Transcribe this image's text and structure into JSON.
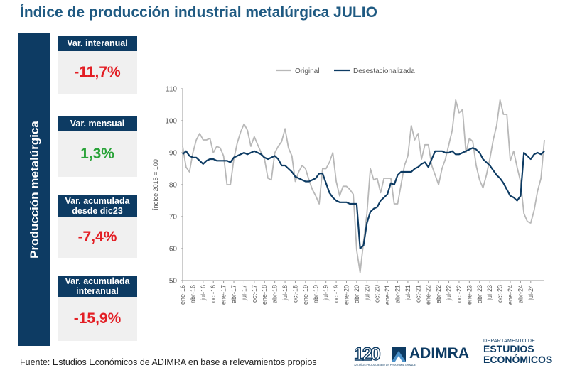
{
  "page": {
    "title": "Índice de producción industrial metalúrgica JULIO",
    "side_label": "Producción metalúrgica",
    "source": "Fuente: Estudios Económicos de ADIMRA en base a relevamientos propios"
  },
  "cards": [
    {
      "label": "Var. interanual",
      "value": "-11,7%",
      "tone": "negative"
    },
    {
      "label": "Var. mensual",
      "value": "1,3%",
      "tone": "positive"
    },
    {
      "label": "Var. acumulada desde dic23",
      "value": "-7,4%",
      "tone": "negative"
    },
    {
      "label": "Var. acumulada interanual",
      "value": "-15,9%",
      "tone": "negative"
    }
  ],
  "colors": {
    "navy": "#0d3b63",
    "title_blue": "#1f5a82",
    "negative": "#e31e24",
    "positive": "#2aa339",
    "original_series": "#b8b8b8",
    "sa_series": "#0d3b63"
  },
  "logos": {
    "anniversary": "120",
    "anniversary_sub": "120 AÑOS PRODUCIENDO UN PROGRAMA GRANDE",
    "brand": "ADIMRA",
    "dept_line1": "DEPARTAMENTO DE",
    "dept_line2": "ESTUDIOS",
    "dept_line3": "ECONÓMICOS"
  },
  "chart_data": {
    "type": "line",
    "title": "",
    "ylabel": "Índice 2015 = 100",
    "xlabel": "",
    "ylim": [
      50,
      110
    ],
    "yticks": [
      50,
      60,
      70,
      80,
      90,
      100,
      110
    ],
    "legend_position": "top",
    "x_start": "ene-16",
    "x_tick_labels": [
      "ene-16",
      "abr-16",
      "jul-16",
      "oct-16",
      "ene-17",
      "abr-17",
      "jul-17",
      "oct-17",
      "ene-18",
      "abr-18",
      "jul-18",
      "oct-18",
      "ene-19",
      "abr-19",
      "jul-19",
      "oct-19",
      "ene-20",
      "abr-20",
      "jul-20",
      "oct-20",
      "ene-21",
      "abr-21",
      "jul-21",
      "oct-21",
      "ene-22",
      "abr-22",
      "jul-22",
      "oct-22",
      "ene-23",
      "abr-23",
      "jul-23",
      "oct-23",
      "ene-24",
      "abr-24",
      "jul-24"
    ],
    "series": [
      {
        "name": "Original",
        "values": [
          92,
          85.5,
          84,
          90,
          94,
          96,
          94,
          94,
          94.5,
          90,
          92,
          91.5,
          89,
          80,
          80,
          88,
          93,
          96.5,
          99,
          97,
          92,
          95,
          92.5,
          90,
          88,
          82,
          81.5,
          90,
          92,
          93.5,
          97.5,
          91.5,
          89,
          81,
          84,
          86,
          85,
          81.5,
          78.5,
          76.5,
          74,
          85,
          85,
          87,
          90,
          81,
          76.5,
          79.5,
          79.5,
          78.5,
          77,
          59.5,
          52.5,
          62,
          71,
          85,
          81.5,
          82,
          77.5,
          82,
          82,
          82,
          74,
          74,
          80,
          86,
          89,
          98.5,
          94,
          96,
          88,
          92.5,
          92.5,
          86,
          83,
          80,
          85,
          88,
          92.5,
          97,
          106.5,
          102.5,
          103.5,
          90,
          94.5,
          93.5,
          86,
          81.5,
          79,
          83,
          88,
          94,
          98.5,
          106.5,
          102,
          102,
          87.5,
          90.5,
          85.5,
          81,
          71,
          68.5,
          68,
          72,
          78,
          82,
          94
        ]
      },
      {
        "name": "Desestacionalizada",
        "values": [
          89.5,
          90.5,
          89,
          88.5,
          88.5,
          87.5,
          86.5,
          87.5,
          88,
          88,
          87.5,
          87.5,
          87.5,
          87.5,
          87,
          88.5,
          89,
          89.5,
          90,
          89.5,
          90,
          90.5,
          90,
          89.5,
          88.5,
          88,
          88.5,
          89,
          88,
          86,
          86,
          85,
          84,
          82.5,
          82,
          81.5,
          81,
          81,
          81.5,
          82,
          83.5,
          83.5,
          80.5,
          77.5,
          76,
          75,
          74.5,
          74.5,
          74.5,
          74,
          74,
          74,
          60,
          61,
          68,
          71.5,
          72.5,
          73,
          75,
          76,
          77,
          80.5,
          80,
          83,
          84,
          84,
          84,
          84,
          85,
          85.5,
          86.5,
          87,
          85.5,
          88,
          90.5,
          90.5,
          90.5,
          90,
          90,
          90.5,
          89.5,
          89.5,
          90,
          90.5,
          91,
          91.5,
          91,
          90,
          88,
          87,
          86,
          84.5,
          83,
          82,
          80.5,
          78.5,
          76.5,
          76,
          75,
          76.5,
          90,
          89,
          88,
          89.5,
          90,
          89.5,
          90.5
        ]
      }
    ]
  }
}
